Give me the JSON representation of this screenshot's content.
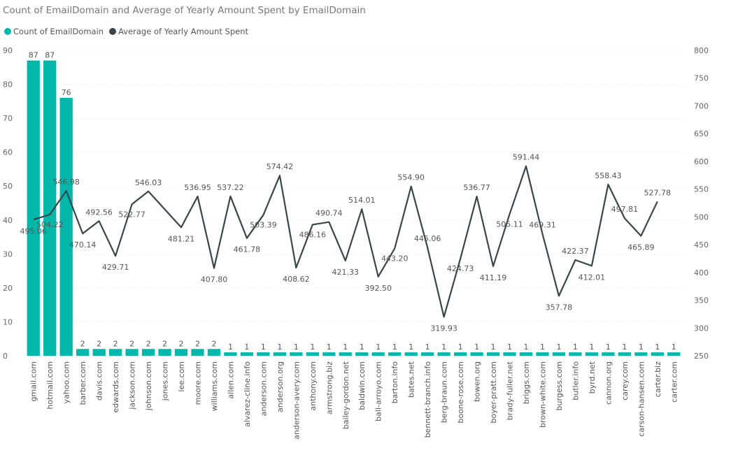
{
  "chart_data": {
    "type": "bar+line",
    "title": "Count of EmailDomain and Average of Yearly Amount Spent by EmailDomain",
    "categories": [
      "gmail.com",
      "hotmail.com",
      "yahoo.com",
      "barber.com",
      "davis.com",
      "edwards.com",
      "jackson.com",
      "johnson.com",
      "jones.com",
      "lee.com",
      "moore.com",
      "williams.com",
      "allen.com",
      "alvarez-cline.info",
      "anderson.com",
      "anderson.org",
      "anderson-avery.com",
      "anthony.com",
      "armstrong.biz",
      "bailey-gordon.net",
      "baldwin.com",
      "ball-arroyo.com",
      "barton.info",
      "bates.net",
      "bennett-branch.info",
      "berg-braun.com",
      "boone-rose.com",
      "bowen.org",
      "boyer-pratt.com",
      "brady-fuller.net",
      "briggs.com",
      "brown-white.com",
      "burgess.com",
      "butler.info",
      "byrd.net",
      "cannon.org",
      "carey.com",
      "carson-hansen.com",
      "carter.biz",
      "carter.com"
    ],
    "series": [
      {
        "name": "Count of EmailDomain",
        "type": "bar",
        "axis": "left",
        "color": "#01B8AA",
        "values": [
          87,
          87,
          76,
          2,
          2,
          2,
          2,
          2,
          2,
          2,
          2,
          2,
          1,
          1,
          1,
          1,
          1,
          1,
          1,
          1,
          1,
          1,
          1,
          1,
          1,
          1,
          1,
          1,
          1,
          1,
          1,
          1,
          1,
          1,
          1,
          1,
          1,
          1,
          1,
          1
        ]
      },
      {
        "name": "Average of Yearly Amount Spent",
        "type": "line",
        "axis": "right",
        "color": "#374649",
        "values": [
          495.06,
          504.22,
          546.98,
          470.14,
          492.56,
          429.71,
          522.77,
          546.03,
          null,
          481.21,
          536.95,
          407.8,
          537.22,
          461.78,
          503.39,
          574.42,
          408.62,
          486.16,
          490.74,
          421.33,
          514.01,
          392.5,
          443.2,
          554.9,
          445.06,
          319.93,
          424.73,
          536.77,
          411.19,
          505.11,
          591.44,
          469.31,
          357.78,
          422.37,
          412.01,
          558.43,
          497.81,
          465.89,
          527.78,
          null
        ],
        "labels": [
          "495.06",
          "504.22",
          "546.98",
          "470.14",
          "492.56",
          "429.71",
          "522.77",
          "546.03",
          "",
          "481.21",
          "536.95",
          "407.80",
          "537.22",
          "461.78",
          "503.39",
          "574.42",
          "408.62",
          "486.16",
          "490.74",
          "421.33",
          "514.01",
          "392.50",
          "443.20",
          "554.90",
          "445.06",
          "319.93",
          "424.73",
          "536.77",
          "411.19",
          "505.11",
          "591.44",
          "469.31",
          "357.78",
          "422.37",
          "412.01",
          "558.43",
          "497.81",
          "465.89",
          "527.78",
          ""
        ]
      }
    ],
    "y_left": {
      "range": [
        0,
        90
      ],
      "ticks": [
        "0",
        "10",
        "20",
        "30",
        "40",
        "50",
        "60",
        "70",
        "80",
        "90"
      ]
    },
    "y_right": {
      "range": [
        250,
        800
      ],
      "ticks": [
        "250",
        "300",
        "350",
        "400",
        "450",
        "500",
        "550",
        "600",
        "650",
        "700",
        "750",
        "800"
      ]
    },
    "grid": true,
    "legend_position": "top-left"
  }
}
